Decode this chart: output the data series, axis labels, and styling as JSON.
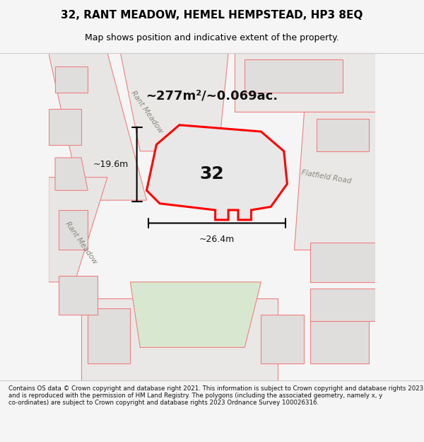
{
  "title": "32, RANT MEADOW, HEMEL HEMPSTEAD, HP3 8EQ",
  "subtitle": "Map shows position and indicative extent of the property.",
  "area_text": "~277m²/~0.069ac.",
  "label_32": "32",
  "dim_height": "~19.6m",
  "dim_width": "~26.4m",
  "road_label_1": "Rant Meadow",
  "road_label_2": "Rant Meadow",
  "road_label_3": "Flatfield Road",
  "footer_text": "Contains OS data © Crown copyright and database right 2021. This information is subject to Crown copyright and database rights 2023 and is reproduced with the permission of HM Land Registry. The polygons (including the associated geometry, namely x, y co-ordinates) are subject to Crown copyright and database rights 2023 Ordnance Survey 100026316.",
  "bg_color": "#f5f5f5",
  "map_bg": "#f0f0f0",
  "road_color": "#e8e8e8",
  "road_outline": "#d0c8c0",
  "property_fill": "#e8e8e8",
  "property_outline": "#ff0000",
  "pink_line_color": "#f08080",
  "green_area_color": "#d8e8d0",
  "dim_line_color": "#000000",
  "title_color": "#000000",
  "footer_bg": "#ffffff"
}
